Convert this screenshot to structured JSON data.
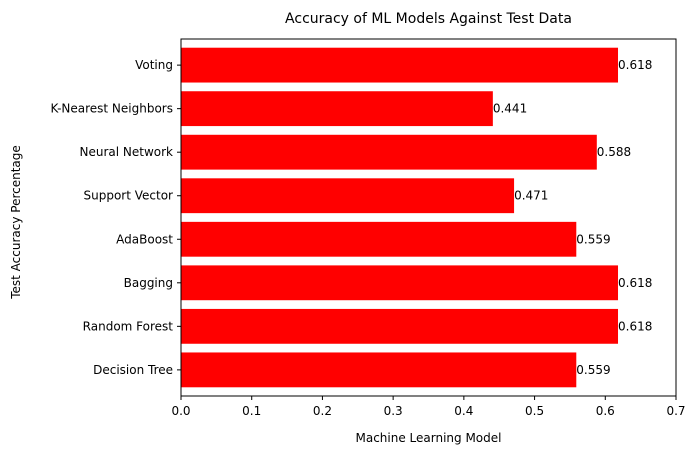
{
  "chart_data": {
    "type": "bar",
    "orientation": "horizontal",
    "title": "Accuracy of ML Models Against Test Data",
    "xlabel": "Machine Learning Model",
    "ylabel": "Test Accuracy Percentage",
    "categories": [
      "Decision Tree",
      "Random Forest",
      "Bagging",
      "AdaBoost",
      "Support Vector",
      "Neural Network",
      "K-Nearest Neighbors",
      "Voting"
    ],
    "values": [
      0.559,
      0.618,
      0.618,
      0.559,
      0.471,
      0.588,
      0.441,
      0.618
    ],
    "data_labels": [
      "0.559",
      "0.618",
      "0.618",
      "0.559",
      "0.471",
      "0.588",
      "0.441",
      "0.618"
    ],
    "xlim": [
      0,
      0.7
    ],
    "xticks": [
      0.0,
      0.1,
      0.2,
      0.3,
      0.4,
      0.5,
      0.6,
      0.7
    ],
    "xtick_labels": [
      "0.0",
      "0.1",
      "0.2",
      "0.3",
      "0.4",
      "0.5",
      "0.6",
      "0.7"
    ],
    "grid": false,
    "legend": "none",
    "colors": {
      "bar": "#ff0000",
      "axis": "#000000",
      "text": "#000000",
      "background": "#ffffff"
    }
  }
}
